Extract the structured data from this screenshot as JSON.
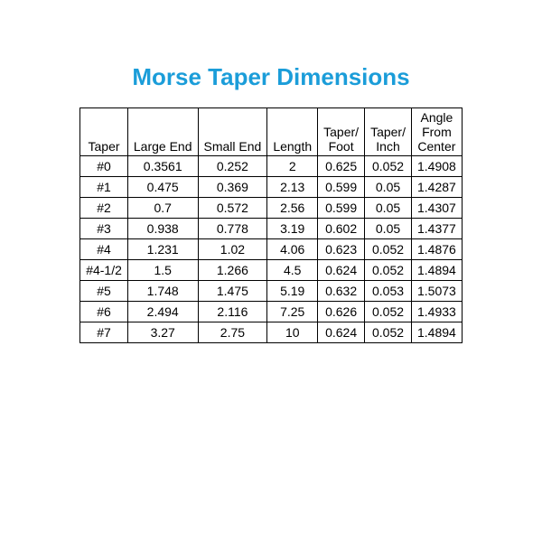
{
  "title": "Morse Taper Dimensions",
  "title_color": "#1b9dd9",
  "background_color": "#ffffff",
  "border_color": "#000000",
  "text_color": "#000000",
  "title_fontsize": 26,
  "cell_fontsize": 14,
  "columns": [
    {
      "lines": [
        "Taper"
      ]
    },
    {
      "lines": [
        "Large End"
      ]
    },
    {
      "lines": [
        "Small End"
      ]
    },
    {
      "lines": [
        "Length"
      ]
    },
    {
      "lines": [
        "Taper/",
        "Foot"
      ]
    },
    {
      "lines": [
        "Taper/",
        "Inch"
      ]
    },
    {
      "lines": [
        "Angle",
        "From",
        "Center"
      ]
    }
  ],
  "rows": [
    [
      "#0",
      "0.3561",
      "0.252",
      "2",
      "0.625",
      "0.052",
      "1.4908"
    ],
    [
      "#1",
      "0.475",
      "0.369",
      "2.13",
      "0.599",
      "0.05",
      "1.4287"
    ],
    [
      "#2",
      "0.7",
      "0.572",
      "2.56",
      "0.599",
      "0.05",
      "1.4307"
    ],
    [
      "#3",
      "0.938",
      "0.778",
      "3.19",
      "0.602",
      "0.05",
      "1.4377"
    ],
    [
      "#4",
      "1.231",
      "1.02",
      "4.06",
      "0.623",
      "0.052",
      "1.4876"
    ],
    [
      "#4-1/2",
      "1.5",
      "1.266",
      "4.5",
      "0.624",
      "0.052",
      "1.4894"
    ],
    [
      "#5",
      "1.748",
      "1.475",
      "5.19",
      "0.632",
      "0.053",
      "1.5073"
    ],
    [
      "#6",
      "2.494",
      "2.116",
      "7.25",
      "0.626",
      "0.052",
      "1.4933"
    ],
    [
      "#7",
      "3.27",
      "2.75",
      "10",
      "0.624",
      "0.052",
      "1.4894"
    ]
  ]
}
